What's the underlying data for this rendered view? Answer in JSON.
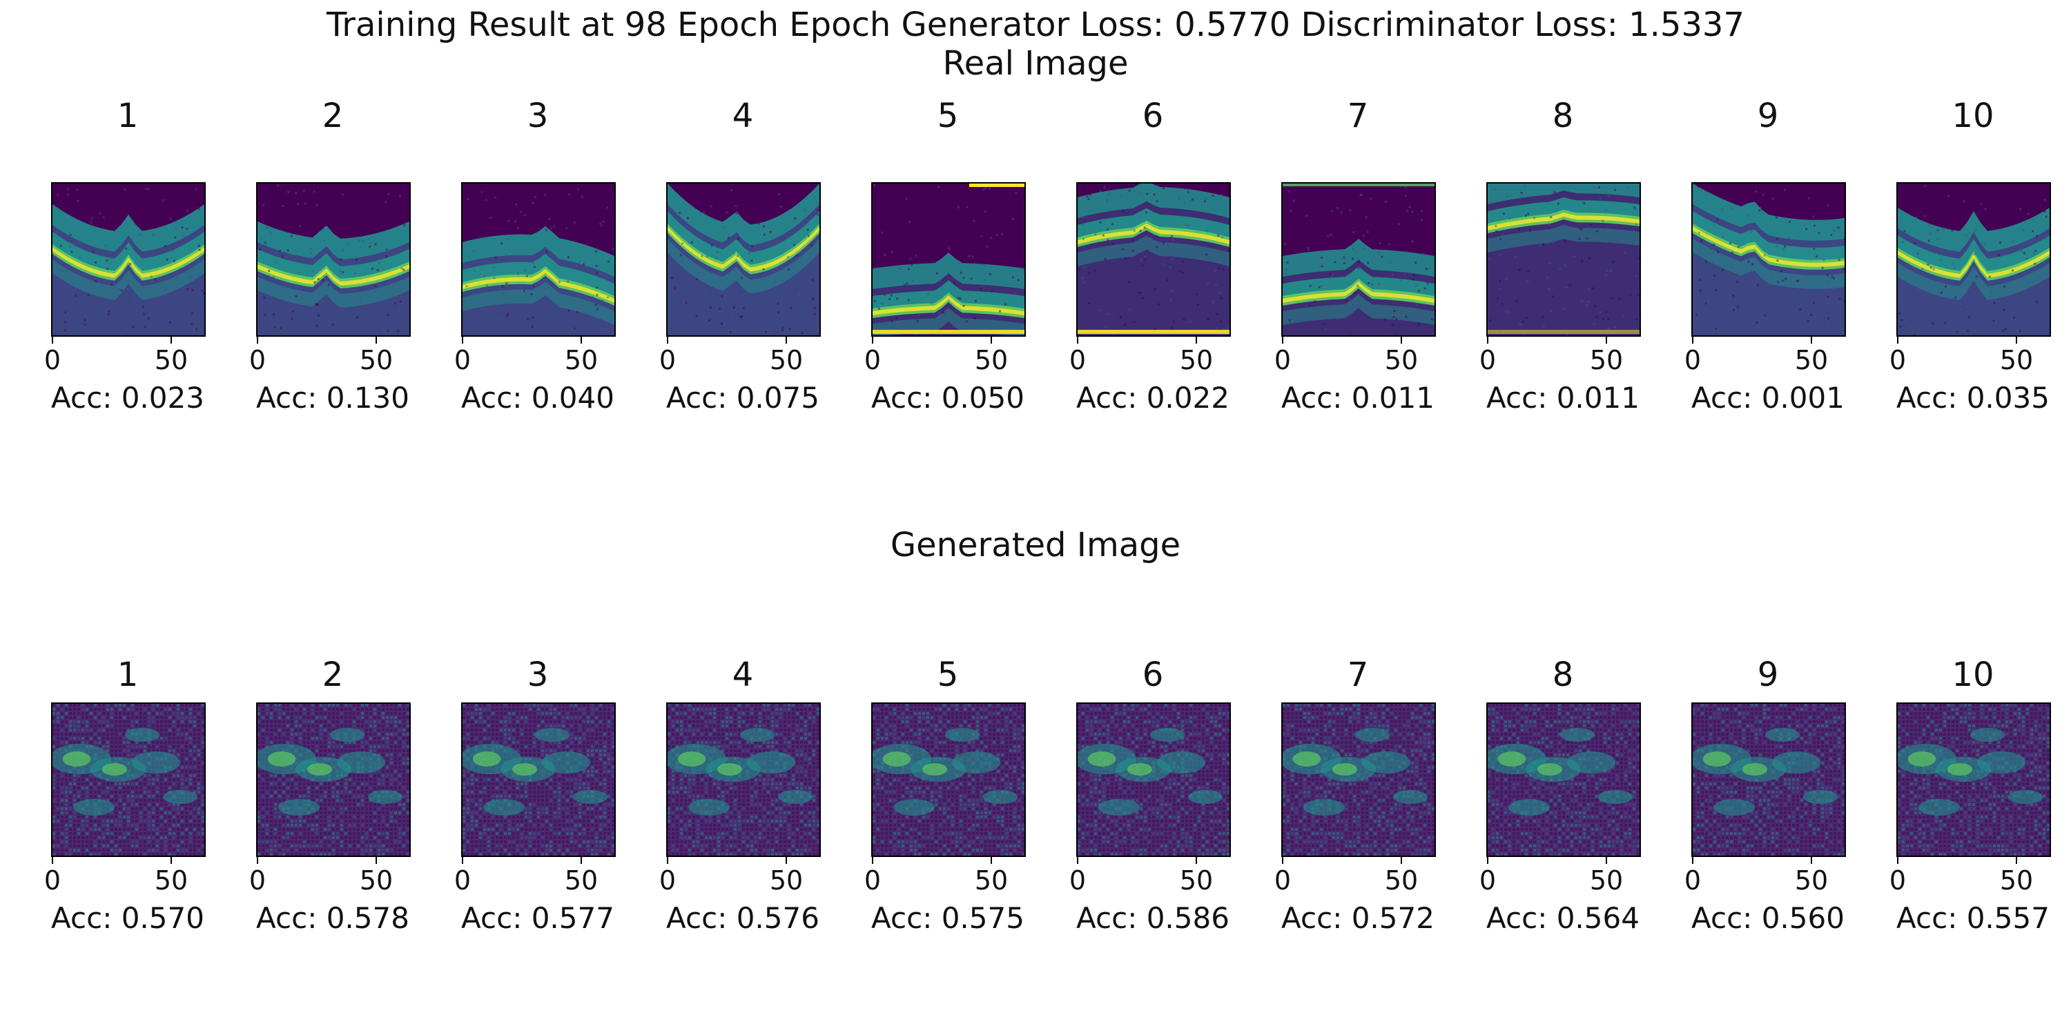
{
  "figure": {
    "title": "Training Result at 98 Epoch Epoch Generator Loss: 0.5770 Discriminator Loss: 1.5337",
    "real_heading": "Real Image",
    "generated_heading": "Generated Image",
    "x_ticks": [
      "0",
      "50"
    ],
    "acc_prefix": "Acc: "
  },
  "colors": {
    "frame": "#000000",
    "viridis_dark": "#440154",
    "viridis_blue": "#3b528b",
    "viridis_teal": "#21918c",
    "viridis_green": "#5ec962",
    "viridis_yellow": "#fde725",
    "generated_base": "#4a2a6e"
  },
  "real_panels": [
    {
      "label": "1",
      "acc": "Acc: 0.023"
    },
    {
      "label": "2",
      "acc": "Acc: 0.130"
    },
    {
      "label": "3",
      "acc": "Acc: 0.040"
    },
    {
      "label": "4",
      "acc": "Acc: 0.075"
    },
    {
      "label": "5",
      "acc": "Acc: 0.050"
    },
    {
      "label": "6",
      "acc": "Acc: 0.022"
    },
    {
      "label": "7",
      "acc": "Acc: 0.011"
    },
    {
      "label": "8",
      "acc": "Acc: 0.011"
    },
    {
      "label": "9",
      "acc": "Acc: 0.001"
    },
    {
      "label": "10",
      "acc": "Acc: 0.035"
    }
  ],
  "generated_panels": [
    {
      "label": "1",
      "acc": "Acc: 0.570"
    },
    {
      "label": "2",
      "acc": "Acc: 0.578"
    },
    {
      "label": "3",
      "acc": "Acc: 0.577"
    },
    {
      "label": "4",
      "acc": "Acc: 0.576"
    },
    {
      "label": "5",
      "acc": "Acc: 0.575"
    },
    {
      "label": "6",
      "acc": "Acc: 0.586"
    },
    {
      "label": "7",
      "acc": "Acc: 0.572"
    },
    {
      "label": "8",
      "acc": "Acc: 0.564"
    },
    {
      "label": "9",
      "acc": "Acc: 0.560"
    },
    {
      "label": "10",
      "acc": "Acc: 0.557"
    }
  ]
}
